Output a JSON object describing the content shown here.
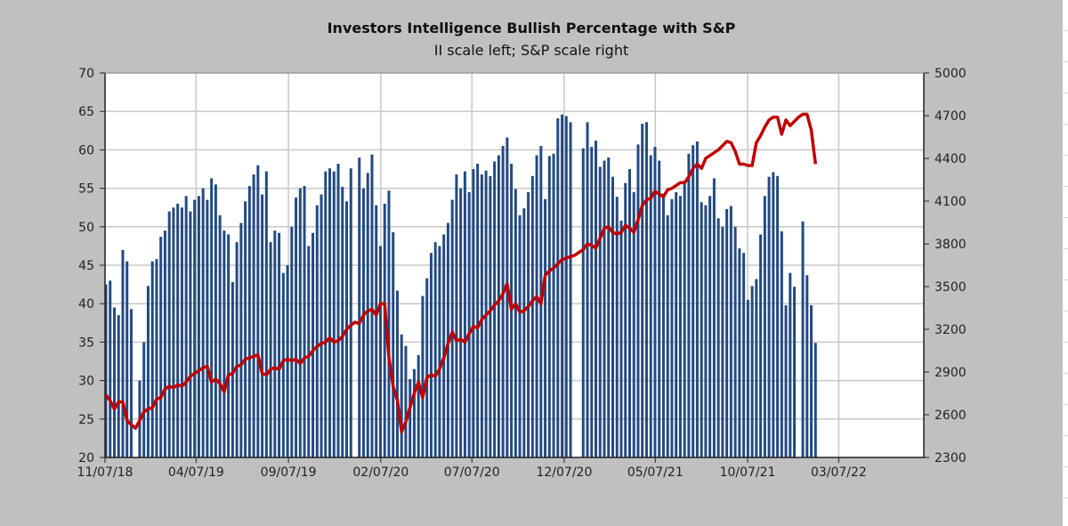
{
  "chart_data": {
    "type": "bar+line",
    "title": "Investors Intelligence Bullish Percentage with S&P",
    "subtitle": "II scale left; S&P scale right",
    "x_interval": "weekly",
    "x_start": "11/07/18",
    "x_ticks": [
      {
        "label": "11/07/18",
        "day": 0
      },
      {
        "label": "04/07/19",
        "day": 151
      },
      {
        "label": "09/07/19",
        "day": 304
      },
      {
        "label": "02/07/20",
        "day": 457
      },
      {
        "label": "07/07/20",
        "day": 608
      },
      {
        "label": "12/07/20",
        "day": 761
      },
      {
        "label": "05/07/21",
        "day": 912
      },
      {
        "label": "10/07/21",
        "day": 1065
      },
      {
        "label": "03/07/22",
        "day": 1216
      }
    ],
    "x_range_days": [
      0,
      1357
    ],
    "y_left": {
      "min": 20,
      "max": 70,
      "step": 5,
      "ticks": [
        "20",
        "25",
        "30",
        "35",
        "40",
        "45",
        "50",
        "55",
        "60",
        "65",
        "70"
      ]
    },
    "y_right": {
      "min": 2300,
      "max": 5000,
      "step": 300,
      "ticks": [
        "2300",
        "2600",
        "2900",
        "3200",
        "3500",
        "3800",
        "4100",
        "4400",
        "4700",
        "5000"
      ]
    },
    "grid": true,
    "colors": {
      "bars": "#234a82",
      "line": "#c00000",
      "background": "#c0c0c0",
      "plot": "#ffffff"
    },
    "series": [
      {
        "name": "II Bullish %",
        "type": "bar",
        "axis": "left",
        "values": [
          42.5,
          43,
          39.5,
          38.5,
          47,
          45.5,
          39.3,
          null,
          30,
          35,
          42.3,
          45.5,
          45.8,
          48.7,
          49.5,
          52,
          52.5,
          53,
          52.5,
          54,
          52,
          53.5,
          54,
          55,
          53.5,
          56.3,
          55.5,
          51.5,
          49.5,
          49,
          42.8,
          48,
          50.5,
          53.3,
          55.3,
          56.8,
          58,
          54.2,
          57.2,
          48,
          49.5,
          49.2,
          44,
          45,
          50,
          53.8,
          55,
          55.3,
          47.5,
          49.2,
          52.8,
          54.2,
          57.2,
          57.6,
          57.2,
          58.2,
          55.2,
          53.3,
          57.6,
          null,
          59,
          55,
          57,
          59.4,
          52.8,
          47.5,
          53,
          54.7,
          49.3,
          41.7,
          36,
          34.5,
          30.2,
          31.5,
          33.3,
          41,
          43.3,
          46.6,
          48,
          47.5,
          49,
          50.5,
          53.5,
          56.8,
          55,
          57.2,
          54.5,
          57.5,
          58.2,
          56.8,
          57.3,
          56.6,
          58.5,
          59.3,
          60.5,
          61.6,
          58.2,
          54.9,
          51.5,
          52.4,
          54.5,
          56.6,
          59.3,
          60.5,
          53.6,
          59.2,
          59.5,
          64.1,
          64.6,
          64.4,
          63.6,
          null,
          null,
          60.2,
          63.6,
          60.4,
          61.2,
          57.8,
          58.6,
          59,
          56.5,
          53.9,
          50.8,
          55.7,
          57.5,
          54.5,
          60.7,
          63.4,
          63.6,
          59.3,
          60.4,
          58.6,
          54.3,
          51.5,
          53.6,
          54.5,
          54,
          55.6,
          59.5,
          60.6,
          61.1,
          53.2,
          52.8,
          54,
          56.3,
          51.1,
          50,
          52.3,
          52.7,
          50,
          47.2,
          46.6,
          40.5,
          42.3,
          43.2,
          49,
          54,
          56.5,
          57.1,
          56.6,
          49.4,
          39.8,
          44,
          42.2,
          null,
          50.7,
          43.7,
          39.8,
          34.9
        ]
      },
      {
        "name": "S&P 500",
        "type": "line",
        "axis": "right",
        "values": [
          2740,
          2700,
          2640,
          2690,
          2690,
          2560,
          2530,
          2505,
          2560,
          2620,
          2640,
          2650,
          2710,
          2720,
          2780,
          2800,
          2790,
          2810,
          2800,
          2830,
          2870,
          2890,
          2910,
          2930,
          2940,
          2830,
          2850,
          2820,
          2760,
          2880,
          2890,
          2940,
          2950,
          2990,
          3000,
          3010,
          3020,
          2890,
          2880,
          2920,
          2930,
          2920,
          2980,
          2990,
          2980,
          2990,
          2960,
          3000,
          3010,
          3050,
          3080,
          3100,
          3110,
          3140,
          3110,
          3120,
          3150,
          3200,
          3230,
          3250,
          3240,
          3300,
          3330,
          3340,
          3300,
          3380,
          3380,
          3000,
          2800,
          2700,
          2480,
          2550,
          2650,
          2750,
          2830,
          2720,
          2860,
          2880,
          2870,
          2920,
          3000,
          3100,
          3180,
          3120,
          3130,
          3110,
          3170,
          3220,
          3210,
          3270,
          3300,
          3330,
          3370,
          3400,
          3450,
          3520,
          3340,
          3380,
          3320,
          3330,
          3360,
          3400,
          3430,
          3380,
          3580,
          3610,
          3630,
          3660,
          3690,
          3700,
          3710,
          3720,
          3740,
          3760,
          3800,
          3790,
          3770,
          3840,
          3910,
          3920,
          3880,
          3870,
          3880,
          3930,
          3910,
          3880,
          3970,
          4070,
          4110,
          4120,
          4170,
          4150,
          4130,
          4180,
          4190,
          4210,
          4230,
          4230,
          4270,
          4330,
          4360,
          4330,
          4400,
          4420,
          4440,
          4460,
          4490,
          4520,
          4510,
          4450,
          4360,
          4360,
          4350,
          4350,
          4510,
          4560,
          4620,
          4670,
          4690,
          4690,
          4570,
          4670,
          4630,
          4660,
          4690,
          4710,
          4710,
          4600,
          4360
        ]
      }
    ]
  }
}
